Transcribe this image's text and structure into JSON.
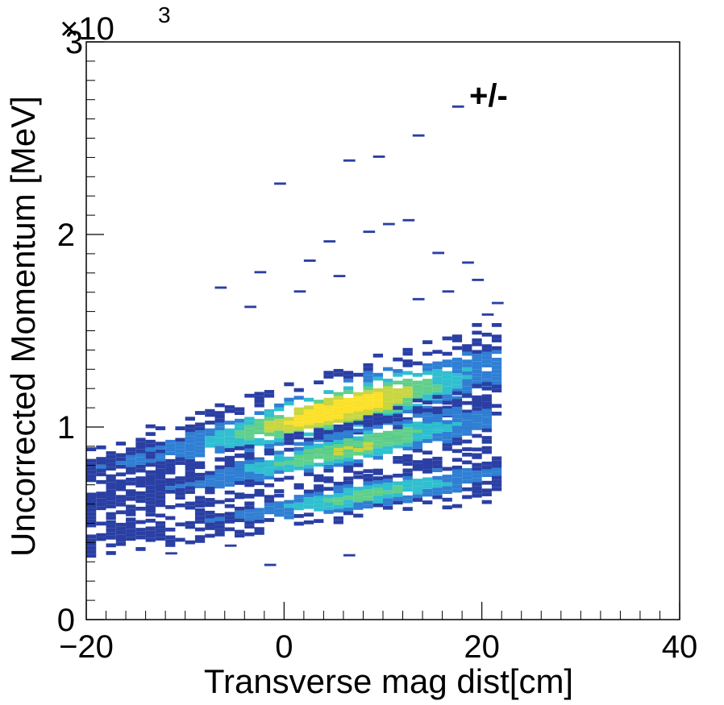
{
  "chart_data": {
    "type": "heatmap",
    "title": "",
    "xlabel": "Transverse mag dist[cm]",
    "ylabel": "Uncorrected Momentum [MeV]",
    "xlim": [
      -20,
      40
    ],
    "ylim": [
      0,
      3000
    ],
    "x_ticks": [
      "−20",
      "0",
      "20",
      "40"
    ],
    "x_tick_values": [
      -20,
      0,
      20,
      40
    ],
    "y_ticks": [
      "0",
      "1",
      "2",
      "3"
    ],
    "y_tick_values": [
      0,
      1000,
      2000,
      3000
    ],
    "y_multiplier_label": "×10",
    "y_multiplier_exponent": "3",
    "annotation": "+/-",
    "colormap": [
      "#2a3fa3",
      "#2f7fd4",
      "#2fbfd0",
      "#5fd08a",
      "#c8d640",
      "#fbe12a"
    ],
    "grid": false,
    "bands": [
      {
        "name": "upper",
        "x_start": -20,
        "x_end": 22,
        "p_at_x_start": 760,
        "p_at_x_end": 1300,
        "width": 130,
        "peak_x": 5,
        "peak_p": 1050,
        "peak_level": 1.0
      },
      {
        "name": "middle",
        "x_start": -20,
        "x_end": 21,
        "p_at_x_start": 580,
        "p_at_x_end": 1050,
        "width": 90,
        "peak_x": 6,
        "peak_p": 800,
        "peak_level": 0.7
      },
      {
        "name": "lower",
        "x_start": -20,
        "x_end": 22,
        "p_at_x_start": 400,
        "p_at_x_end": 760,
        "width": 70,
        "peak_x": 8,
        "peak_p": 560,
        "peak_level": 0.55
      }
    ],
    "sparse_points": [
      [
        -1,
        2260
      ],
      [
        6,
        2380
      ],
      [
        9,
        2400
      ],
      [
        13,
        2510
      ],
      [
        17,
        2660
      ],
      [
        -7,
        1720
      ],
      [
        -3,
        1800
      ],
      [
        2,
        1860
      ],
      [
        4,
        1960
      ],
      [
        8,
        2010
      ],
      [
        10,
        2050
      ],
      [
        12,
        2070
      ],
      [
        15,
        1900
      ],
      [
        18,
        1850
      ],
      [
        -4,
        1620
      ],
      [
        1,
        1700
      ],
      [
        5,
        1780
      ],
      [
        13,
        1660
      ],
      [
        16,
        1700
      ],
      [
        19,
        1760
      ],
      [
        20,
        1580
      ],
      [
        21,
        1640
      ],
      [
        6,
        330
      ],
      [
        -2,
        280
      ],
      [
        -6,
        380
      ],
      [
        -12,
        340
      ]
    ]
  }
}
